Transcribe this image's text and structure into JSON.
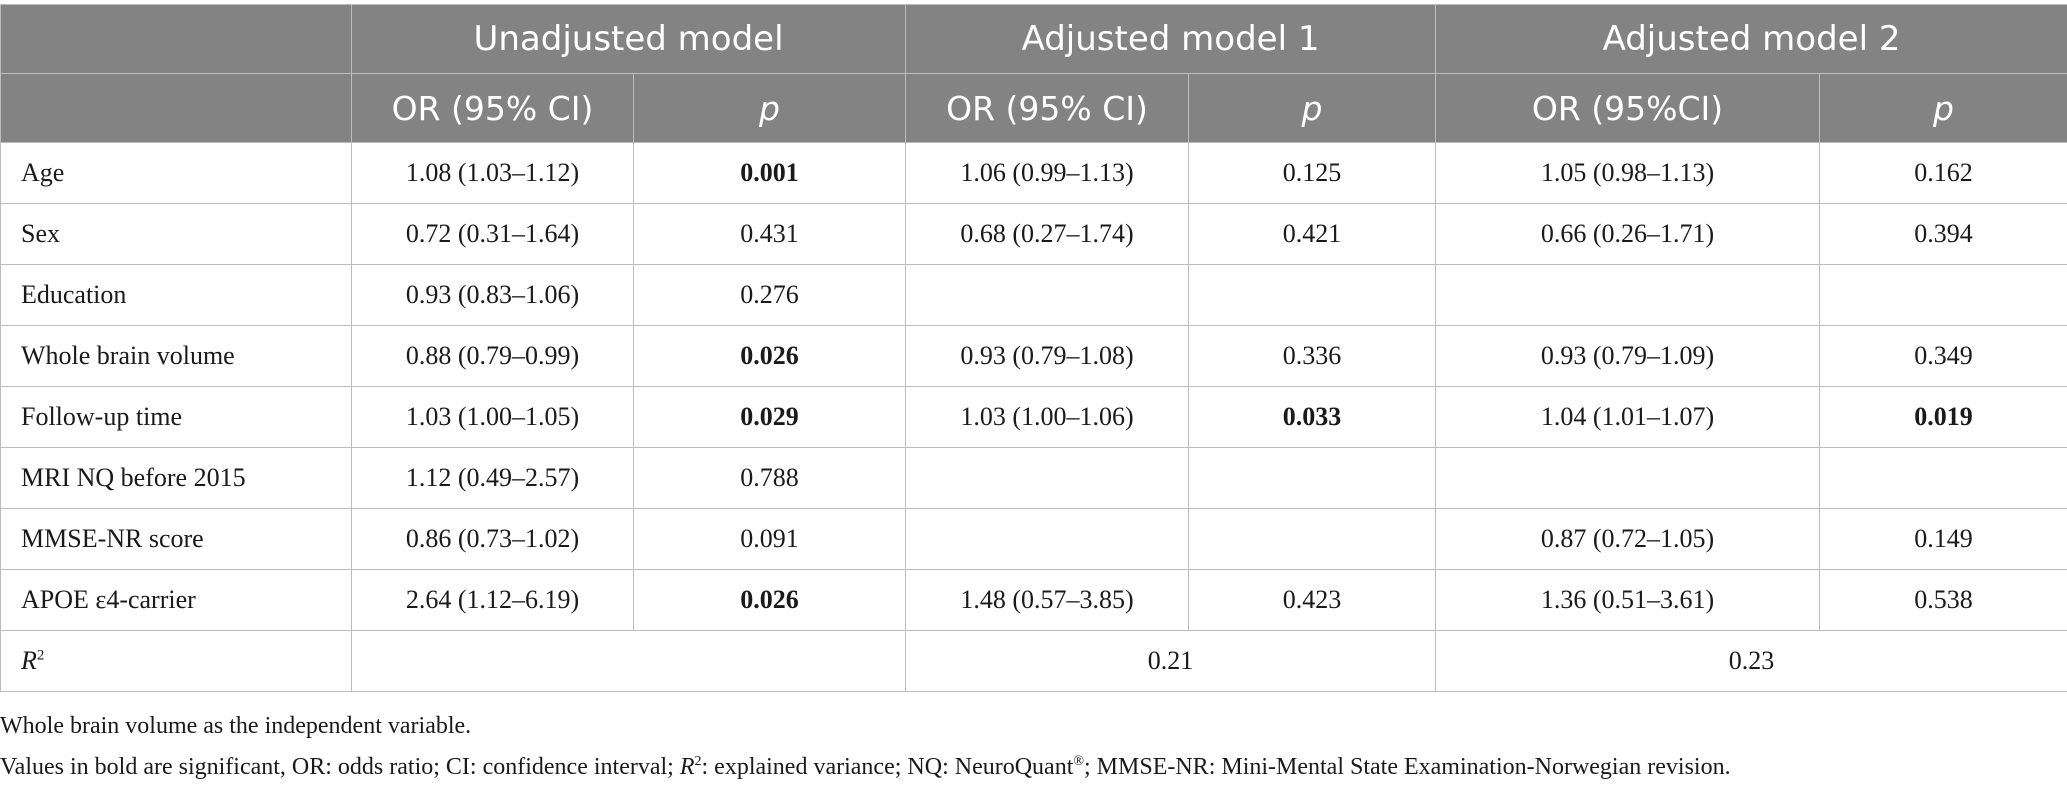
{
  "header": {
    "groups": [
      "Unadjusted model",
      "Adjusted model 1",
      "Adjusted model 2"
    ],
    "subheaders": [
      "OR (95% CI)",
      "p",
      "OR (95% CI)",
      "p",
      "OR (95%CI)",
      "p"
    ]
  },
  "rows": [
    {
      "label": "Age",
      "cells": [
        "1.08 (1.03–1.12)",
        "0.001",
        "1.06 (0.99–1.13)",
        "0.125",
        "1.05 (0.98–1.13)",
        "0.162"
      ],
      "bold": [
        1
      ]
    },
    {
      "label": "Sex",
      "cells": [
        "0.72 (0.31–1.64)",
        "0.431",
        "0.68 (0.27–1.74)",
        "0.421",
        "0.66 (0.26–1.71)",
        "0.394"
      ],
      "bold": []
    },
    {
      "label": "Education",
      "cells": [
        "0.93 (0.83–1.06)",
        "0.276",
        "",
        "",
        "",
        ""
      ],
      "bold": []
    },
    {
      "label": "Whole brain volume",
      "cells": [
        "0.88 (0.79–0.99)",
        "0.026",
        "0.93 (0.79–1.08)",
        "0.336",
        "0.93 (0.79–1.09)",
        "0.349"
      ],
      "bold": [
        1
      ]
    },
    {
      "label": "Follow-up time",
      "cells": [
        "1.03 (1.00–1.05)",
        "0.029",
        "1.03 (1.00–1.06)",
        "0.033",
        "1.04 (1.01–1.07)",
        "0.019"
      ],
      "bold": [
        1,
        3,
        5
      ]
    },
    {
      "label": "MRI NQ before 2015",
      "cells": [
        "1.12 (0.49–2.57)",
        "0.788",
        "",
        "",
        "",
        ""
      ],
      "bold": []
    },
    {
      "label": "MMSE-NR score",
      "cells": [
        "0.86 (0.73–1.02)",
        "0.091",
        "",
        "",
        "0.87 (0.72–1.05)",
        "0.149"
      ],
      "bold": []
    },
    {
      "label": "APOE ε4-carrier",
      "cells": [
        "2.64 (1.12–6.19)",
        "0.026",
        "1.48 (0.57–3.85)",
        "0.423",
        "1.36 (0.51–3.61)",
        "0.538"
      ],
      "bold": [
        1
      ]
    }
  ],
  "r2_row": {
    "label": "R",
    "label_sup": "2",
    "unadjusted": "",
    "adjusted1": "0.21",
    "adjusted2": "0.23"
  },
  "notes": {
    "line1": "Whole brain volume as the independent variable.",
    "line2_a": "Values in bold are significant, OR: odds ratio; CI: confidence interval; ",
    "line2_r": "R",
    "line2_sup": "2",
    "line2_b": ": explained variance; NQ: NeuroQuant",
    "line2_reg": "®",
    "line2_c": "; MMSE-NR: Mini-Mental State Examination-Norwegian revision."
  }
}
